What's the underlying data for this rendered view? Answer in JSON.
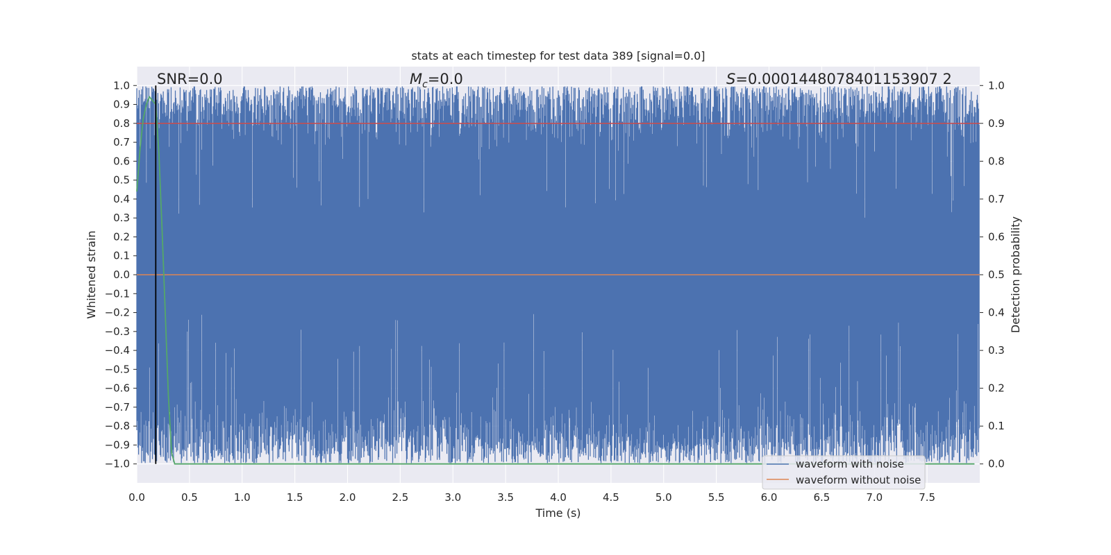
{
  "chart_data": {
    "type": "line",
    "title": "stats at each timestep for test data 389 [signal=0.0]",
    "xlabel": "Time (s)",
    "ylabel_left": "Whitened strain",
    "ylabel_right": "Detection probability",
    "xlim": [
      0.0,
      8.0
    ],
    "ylim_left": [
      -1.1,
      1.1
    ],
    "ylim_right": [
      -0.05,
      1.05
    ],
    "x_ticks": [
      "0.0",
      "0.5",
      "1.0",
      "1.5",
      "2.0",
      "2.5",
      "3.0",
      "3.5",
      "4.0",
      "4.5",
      "5.0",
      "5.5",
      "6.0",
      "6.5",
      "7.0",
      "7.5"
    ],
    "y_ticks_left": [
      "1.0",
      "0.9",
      "0.8",
      "0.7",
      "0.6",
      "0.5",
      "0.4",
      "0.3",
      "0.2",
      "0.1",
      "0.0",
      "−0.1",
      "−0.2",
      "−0.3",
      "−0.4",
      "−0.5",
      "−0.6",
      "−0.7",
      "−0.8",
      "−0.9",
      "−1.0"
    ],
    "y_ticks_right": [
      "1.0",
      "0.9",
      "0.8",
      "0.7",
      "0.6",
      "0.5",
      "0.4",
      "0.3",
      "0.2",
      "0.1",
      "0.0"
    ],
    "grid": true,
    "legend_position": "lower right",
    "annotations": {
      "snr": "SNR=0.0",
      "mc_symbol": "M",
      "mc_subscript": "c",
      "mc_value": "=0.0",
      "s_symbol": "S",
      "s_value": "=0.0001448078401153907 2"
    },
    "series": [
      {
        "name": "waveform with noise",
        "color": "#4c72b0",
        "axis": "left",
        "description_values": "dense noise spanning approximately -1.0 to 1.0 across the full 0-8 s window"
      },
      {
        "name": "waveform without noise",
        "color": "#dd8452",
        "axis": "left",
        "x": [
          0.0,
          8.0
        ],
        "y": [
          0.0,
          0.0
        ]
      },
      {
        "name": "",
        "color": "#55a868",
        "axis": "right",
        "x": [
          0.0,
          0.03,
          0.06,
          0.09,
          0.12,
          0.15,
          0.18,
          0.21,
          0.24,
          0.27,
          0.3,
          0.33,
          0.36,
          0.4,
          0.5,
          1.0,
          2.0,
          3.0,
          4.0,
          5.0,
          6.0,
          7.0,
          7.95
        ],
        "y": [
          0.72,
          0.83,
          0.91,
          0.95,
          0.97,
          0.96,
          0.95,
          0.82,
          0.62,
          0.4,
          0.18,
          0.03,
          0.0,
          0.0,
          0.0,
          0.0,
          0.0,
          0.0,
          0.0,
          0.0,
          0.0,
          0.0,
          0.0
        ]
      },
      {
        "name": "",
        "color": "#c44e52",
        "axis": "right",
        "x": [
          0.0,
          8.0
        ],
        "y": [
          0.9,
          0.9
        ]
      }
    ],
    "vline": {
      "x": 0.18,
      "color": "#000000",
      "ymin": -1.0,
      "ymax": 1.0
    },
    "colors": {
      "background": "#eaeaf2",
      "grid": "#ffffff",
      "noise": "#4c72b0",
      "clean": "#dd8452",
      "probability": "#55a868",
      "threshold": "#c44e52"
    }
  }
}
